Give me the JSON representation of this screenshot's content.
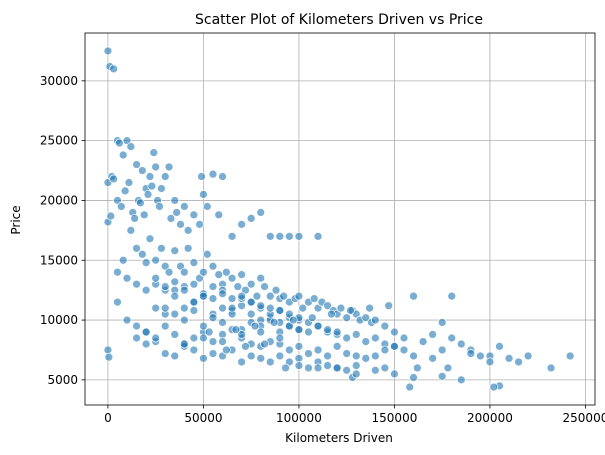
{
  "chart_data": {
    "type": "scatter",
    "title": "Scatter Plot of Kilometers Driven vs Price",
    "xlabel": "Kilometers Driven",
    "ylabel": "Price",
    "xlim": [
      -12000,
      255000
    ],
    "ylim": [
      2900,
      34000
    ],
    "xticks": [
      0,
      50000,
      100000,
      150000,
      200000,
      250000
    ],
    "xtick_labels": [
      "0",
      "50000",
      "100000",
      "150000",
      "200000",
      "250000"
    ],
    "yticks": [
      5000,
      10000,
      15000,
      20000,
      25000,
      30000
    ],
    "ytick_labels": [
      "5000",
      "10000",
      "15000",
      "20000",
      "25000",
      "30000"
    ],
    "grid": true,
    "marker_color": "#1f77b4",
    "marker_edge_color": "#ffffff",
    "marker_alpha": 0.6,
    "series": [
      {
        "x": [
          0,
          1000,
          3000,
          0,
          0,
          0,
          500,
          1500,
          2000,
          3000,
          5000,
          6000,
          8000,
          10000,
          12000,
          15000,
          18000,
          20000,
          22000,
          24000,
          5000,
          7000,
          9000,
          11000,
          13000,
          14000,
          16000,
          17000,
          19000,
          21000,
          23000,
          25000,
          26000,
          27000,
          28000,
          30000,
          32000,
          33000,
          35000,
          36000,
          38000,
          40000,
          42000,
          45000,
          48000,
          49000,
          50000,
          52000,
          55000,
          58000,
          60000,
          65000,
          70000,
          75000,
          80000,
          85000,
          90000,
          95000,
          100000,
          110000,
          5000,
          8000,
          10000,
          12000,
          15000,
          18000,
          20000,
          22000,
          25000,
          28000,
          30000,
          32000,
          35000,
          38000,
          40000,
          42000,
          45000,
          48000,
          50000,
          52000,
          55000,
          58000,
          60000,
          62000,
          65000,
          68000,
          70000,
          72000,
          75000,
          78000,
          80000,
          82000,
          85000,
          88000,
          90000,
          92000,
          95000,
          98000,
          100000,
          102000,
          105000,
          108000,
          110000,
          112000,
          115000,
          118000,
          120000,
          122000,
          125000,
          128000,
          130000,
          132000,
          135000,
          138000,
          140000,
          145000,
          150000,
          155000,
          160000,
          165000,
          170000,
          175000,
          180000,
          185000,
          190000,
          195000,
          200000,
          205000,
          210000,
          215000,
          220000,
          232000,
          242000,
          5000,
          10000,
          15000,
          20000,
          25000,
          30000,
          35000,
          40000,
          45000,
          50000,
          55000,
          60000,
          65000,
          70000,
          75000,
          80000,
          85000,
          90000,
          95000,
          100000,
          105000,
          110000,
          115000,
          120000,
          125000,
          130000,
          135000,
          140000,
          145000,
          150000,
          155000,
          160000,
          170000,
          175000,
          180000,
          190000,
          200000,
          15000,
          20000,
          25000,
          30000,
          35000,
          40000,
          45000,
          50000,
          55000,
          60000,
          65000,
          70000,
          75000,
          80000,
          85000,
          90000,
          95000,
          100000,
          105000,
          110000,
          115000,
          120000,
          125000,
          130000,
          135000,
          140000,
          145000,
          150000,
          20000,
          25000,
          30000,
          35000,
          40000,
          45000,
          50000,
          55000,
          60000,
          65000,
          70000,
          75000,
          80000,
          85000,
          90000,
          95000,
          100000,
          105000,
          110000,
          115000,
          120000,
          125000,
          130000,
          140000,
          150000,
          160000,
          175000,
          185000,
          205000,
          128000,
          158000,
          202000,
          93000,
          100000,
          110000,
          120000,
          130000,
          145000,
          162000,
          178000,
          30000,
          35000,
          40000,
          45000,
          50000,
          55000,
          60000,
          65000,
          70000,
          75000,
          80000,
          85000,
          90000,
          95000,
          100000,
          25000,
          30000,
          35000,
          40000,
          45000,
          50000,
          55000,
          60000,
          65000,
          70000,
          75000,
          80000,
          85000,
          90000,
          95000,
          100000,
          105000,
          110000,
          115000,
          120000,
          15000,
          20000,
          25000,
          30000,
          35000,
          40000,
          45000,
          50000,
          55000,
          60000,
          65000,
          70000,
          75000,
          80000,
          85000,
          90000,
          95000,
          100000,
          40000,
          50000,
          60000,
          70000,
          80000,
          90000,
          62000,
          72000,
          82000,
          53000,
          67000,
          77000,
          87000,
          97000,
          107000,
          117000,
          127000,
          137000,
          147000
        ],
        "y": [
          32500,
          31200,
          31000,
          21500,
          18200,
          7500,
          6900,
          18700,
          22000,
          21800,
          25000,
          24800,
          23800,
          25000,
          24500,
          23000,
          22500,
          21000,
          22000,
          24000,
          20000,
          19500,
          20800,
          21500,
          19000,
          18500,
          20000,
          19800,
          18800,
          20500,
          21200,
          22800,
          20000,
          19500,
          21000,
          22000,
          22800,
          18500,
          20000,
          19000,
          18000,
          19500,
          17500,
          18800,
          18000,
          22000,
          20500,
          19500,
          22200,
          18800,
          22000,
          17000,
          18000,
          18500,
          19000,
          17000,
          17000,
          17000,
          17000,
          17000,
          14000,
          15000,
          13500,
          17500,
          16000,
          15500,
          14800,
          16800,
          15000,
          16000,
          14500,
          14000,
          15800,
          14500,
          14000,
          16000,
          14800,
          13500,
          14000,
          15500,
          14500,
          13800,
          13000,
          14000,
          13500,
          12800,
          13800,
          12500,
          13000,
          12000,
          13500,
          12800,
          12000,
          12500,
          11800,
          12000,
          11500,
          11800,
          12000,
          11000,
          11500,
          11800,
          11000,
          11500,
          11200,
          10800,
          10500,
          11000,
          10200,
          10800,
          10500,
          10000,
          10200,
          9800,
          10000,
          9500,
          9000,
          8500,
          12000,
          8200,
          8800,
          9800,
          12000,
          8000,
          7500,
          7000,
          7000,
          7800,
          6800,
          6500,
          7000,
          6000,
          7000,
          11500,
          10000,
          9500,
          9000,
          11000,
          10500,
          12500,
          11000,
          11500,
          12000,
          10500,
          11000,
          10800,
          11200,
          10500,
          10000,
          10200,
          9800,
          9500,
          9200,
          9000,
          9500,
          9000,
          8800,
          8500,
          8800,
          8200,
          8500,
          8000,
          7800,
          7500,
          7000,
          6800,
          7500,
          8500,
          7200,
          6500,
          8500,
          9000,
          8200,
          9500,
          8800,
          8000,
          8500,
          9000,
          8200,
          8800,
          9200,
          8500,
          8000,
          7800,
          8200,
          8000,
          7500,
          7800,
          7200,
          7500,
          7000,
          7800,
          7200,
          7000,
          6800,
          7000,
          7500,
          7800,
          8000,
          8500,
          7200,
          7000,
          7800,
          7500,
          6800,
          7200,
          7000,
          7500,
          6500,
          7000,
          6800,
          6500,
          7000,
          6500,
          6800,
          6000,
          6500,
          6200,
          6000,
          5800,
          6200,
          5800,
          5500,
          5200,
          5300,
          5000,
          4500,
          5200,
          4400,
          4400,
          6000,
          6200,
          6000,
          6000,
          5500,
          6000,
          6000,
          6000,
          11000,
          10500,
          10000,
          10800,
          9500,
          10200,
          9800,
          10500,
          9200,
          9800,
          9500,
          10000,
          9000,
          9500,
          9200,
          13000,
          12500,
          12000,
          12800,
          11500,
          12200,
          11800,
          12500,
          11000,
          11800,
          11500,
          11000,
          10500,
          10800,
          10200,
          10000,
          9800,
          9500,
          9200,
          9000,
          13000,
          12500,
          13500,
          12800,
          13200,
          12500,
          13000,
          12000,
          12800,
          12200,
          11800,
          12000,
          11500,
          11200,
          11000,
          10800,
          10500,
          10200,
          8000,
          8500,
          8200,
          8800,
          9000,
          8500,
          7500,
          7800,
          8000,
          9000,
          9200,
          9500,
          9800,
          10000,
          10200,
          10500,
          10800,
          11000,
          11200
        ]
      }
    ]
  }
}
